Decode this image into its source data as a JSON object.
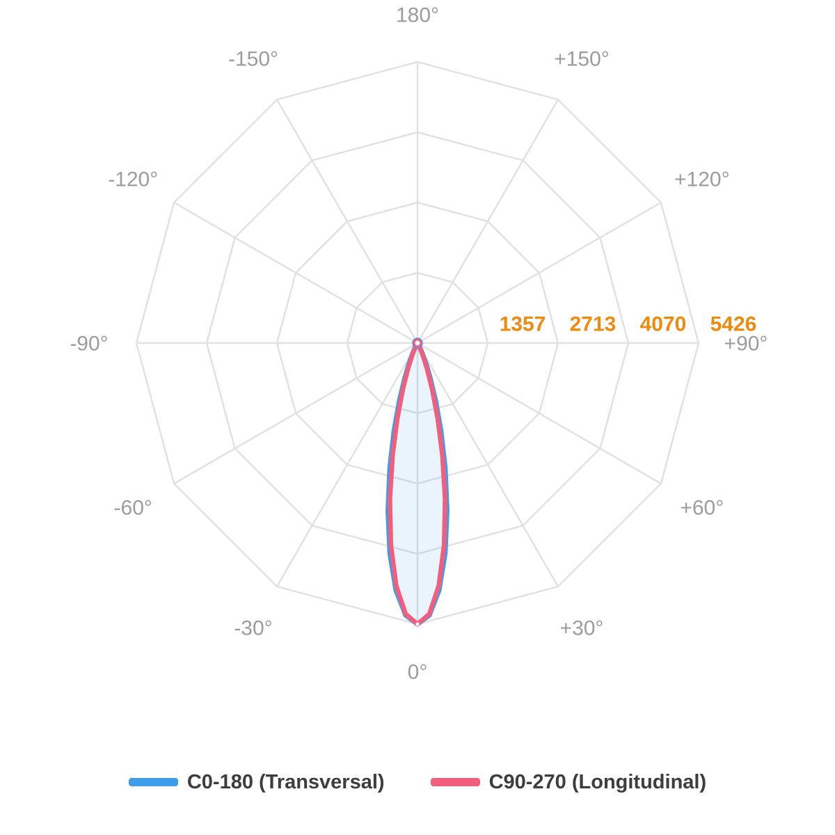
{
  "background": "#FFFFFF",
  "colors": {
    "grid": "#E1E1E1",
    "angle_label": "#9C9C9C",
    "tick_label": "#EE8B0F",
    "legend_text": "#3D3D3D",
    "beam_fill": "rgba(62,157,232,0.11)",
    "c0_blue": "#3E9DE8",
    "c90_pink": "#F25F7E"
  },
  "legend": {
    "items": [
      {
        "label": "C0-180 (Transversal)",
        "color": "#3E9DE8"
      },
      {
        "label": "C90-270 (Longitudinal)",
        "color": "#F25F7E"
      }
    ]
  },
  "chart_data": {
    "type": "line",
    "subtype": "polar-photometric-distribution",
    "title": "",
    "grid_shape": "polygon",
    "legend_position": "bottom",
    "angle_step_deg": 30,
    "angle_labels": [
      "0°",
      "+30°",
      "+60°",
      "+90°",
      "+120°",
      "+150°",
      "180°",
      "-150°",
      "-120°",
      "-90°",
      "-60°",
      "-30°"
    ],
    "zero_direction": "down",
    "r_ticks": [
      1357,
      2713,
      4070,
      5426
    ],
    "r_max": 5426,
    "peak_intensity": 5426,
    "peak_angle_deg": 0,
    "series": [
      {
        "name": "C0-180 (Transversal)",
        "color": "#3E9DE8",
        "symmetric": true,
        "angles_deg": [
          0,
          2.5,
          5,
          7.5,
          10,
          12.5,
          15,
          17.5,
          20,
          22.5,
          25,
          27.5,
          30,
          32.5,
          35
        ],
        "values": [
          5426,
          5258,
          4786,
          4091,
          3284,
          2476,
          1753,
          1166,
          728,
          427,
          235,
          122,
          59,
          27,
          0
        ]
      },
      {
        "name": "C90-270 (Longitudinal)",
        "color": "#F25F7E",
        "symmetric": true,
        "angles_deg": [
          0,
          2.5,
          5,
          7.5,
          10,
          12.5,
          15,
          17.5,
          20,
          22.5,
          25,
          27.5,
          30,
          32.5,
          35
        ],
        "values": [
          5426,
          5235,
          4702,
          3932,
          3059,
          2218,
          1496,
          940,
          549,
          299,
          151,
          71,
          31,
          13,
          0
        ]
      }
    ]
  }
}
